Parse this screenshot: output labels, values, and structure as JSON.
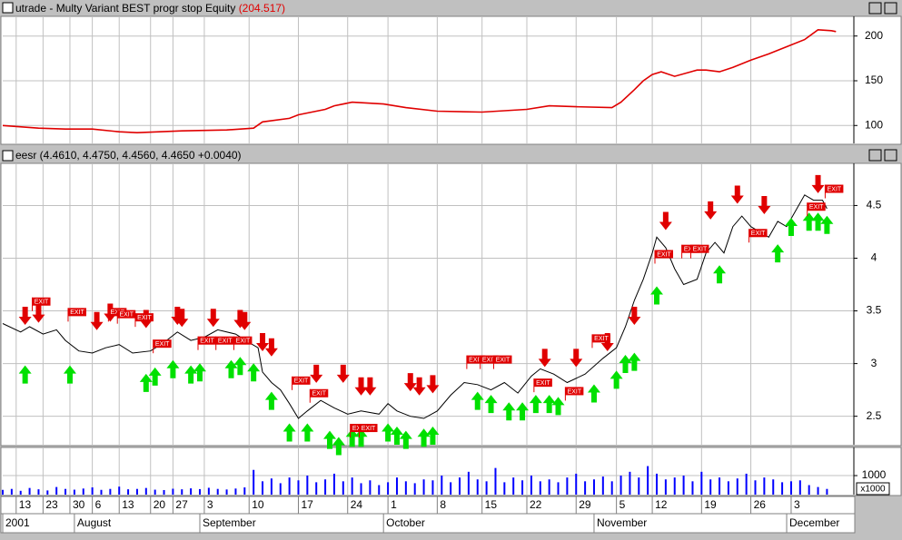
{
  "chart_data": [
    {
      "type": "line",
      "title": "utrade - Multy Variant BEST progr stop Equity",
      "last_value_label": "(204.517)",
      "color": "#e00000",
      "x": [
        0,
        8,
        14,
        20,
        26,
        30,
        40,
        50,
        56,
        58,
        64,
        66,
        72,
        74,
        78,
        85,
        90,
        97,
        107,
        117,
        122,
        128,
        136,
        138,
        141,
        143,
        145,
        147,
        150,
        155,
        157,
        160,
        163,
        167,
        171,
        175,
        179,
        182,
        185,
        186
      ],
      "values": [
        100,
        97,
        96,
        96,
        93,
        92,
        94,
        95,
        97,
        104,
        108,
        112,
        118,
        122,
        126,
        124,
        120,
        116,
        115,
        118,
        122,
        121,
        120,
        126,
        140,
        150,
        157,
        160,
        155,
        162,
        162,
        160,
        165,
        173,
        180,
        188,
        196,
        207,
        206,
        205
      ],
      "xlim": [
        0,
        190
      ],
      "ylim": [
        80,
        222
      ],
      "yticks": [
        100,
        150,
        200
      ],
      "grid": true
    },
    {
      "type": "line",
      "title": "eesr (4.4610, 4.4750, 4.4560, 4.4650 +0.0040)",
      "color": "#000000",
      "x": [
        0,
        4,
        6,
        9,
        12,
        14,
        17,
        20,
        23,
        26,
        29,
        33,
        36,
        39,
        42,
        45,
        48,
        52,
        55,
        57,
        58,
        60,
        62,
        64,
        66,
        68,
        71,
        74,
        77,
        80,
        84,
        86,
        88,
        91,
        94,
        97,
        100,
        103,
        106,
        109,
        112,
        115,
        118,
        120,
        123,
        126,
        130,
        134,
        137,
        139,
        141,
        143,
        145,
        146,
        148,
        150,
        152,
        155,
        157,
        159,
        161,
        163,
        165,
        167,
        169,
        171,
        173,
        175,
        177,
        179,
        181,
        183,
        184
      ],
      "values": [
        3.38,
        3.3,
        3.35,
        3.28,
        3.32,
        3.22,
        3.12,
        3.1,
        3.15,
        3.18,
        3.1,
        3.12,
        3.2,
        3.3,
        3.22,
        3.25,
        3.32,
        3.28,
        3.2,
        3.15,
        2.92,
        2.82,
        2.75,
        2.62,
        2.48,
        2.55,
        2.65,
        2.58,
        2.52,
        2.55,
        2.52,
        2.62,
        2.55,
        2.5,
        2.48,
        2.55,
        2.7,
        2.82,
        2.8,
        2.75,
        2.82,
        2.72,
        2.88,
        2.95,
        2.9,
        2.82,
        2.9,
        3.05,
        3.15,
        3.35,
        3.6,
        3.8,
        4.05,
        4.2,
        4.1,
        3.9,
        3.75,
        3.8,
        4.05,
        4.15,
        4.05,
        4.3,
        4.4,
        4.3,
        4.25,
        4.2,
        4.35,
        4.3,
        4.45,
        4.6,
        4.55,
        4.55,
        4.47
      ],
      "sell_signals": {
        "color": "#e00000",
        "x": [
          5,
          8,
          21,
          24,
          32,
          39,
          40,
          47,
          53,
          54,
          58,
          60,
          70,
          76,
          80,
          82,
          91,
          93,
          96,
          121,
          128,
          135,
          141,
          148,
          158,
          164,
          170,
          182
        ],
        "values": [
          3.35,
          3.37,
          3.3,
          3.38,
          3.32,
          3.35,
          3.33,
          3.33,
          3.32,
          3.3,
          3.1,
          3.05,
          2.8,
          2.8,
          2.68,
          2.68,
          2.72,
          2.68,
          2.7,
          2.95,
          2.95,
          3.1,
          3.35,
          4.25,
          4.35,
          4.5,
          4.4,
          4.6
        ]
      },
      "buy_signals": {
        "color": "#00e000",
        "x": [
          5,
          15,
          32,
          34,
          38,
          42,
          44,
          51,
          53,
          56,
          60,
          64,
          68,
          73,
          75,
          78,
          80,
          86,
          88,
          90,
          94,
          96,
          106,
          109,
          113,
          116,
          119,
          122,
          124,
          132,
          137,
          139,
          141,
          146,
          160,
          173,
          176,
          180,
          182,
          184
        ],
        "values": [
          3.0,
          3.0,
          2.92,
          2.98,
          3.05,
          3.0,
          3.02,
          3.05,
          3.08,
          3.02,
          2.75,
          2.45,
          2.45,
          2.38,
          2.32,
          2.4,
          2.4,
          2.45,
          2.42,
          2.38,
          2.4,
          2.42,
          2.75,
          2.72,
          2.65,
          2.65,
          2.72,
          2.72,
          2.7,
          2.82,
          2.95,
          3.1,
          3.12,
          3.75,
          3.95,
          4.15,
          4.4,
          4.45,
          4.45,
          4.42
        ]
      },
      "exit_label": "EXIT",
      "exits": {
        "color": "#e00000",
        "x": [
          7,
          15,
          24,
          26,
          30,
          34,
          44,
          48,
          52,
          65,
          69,
          78,
          80,
          104,
          107,
          110,
          119,
          126,
          132,
          146,
          152,
          154,
          167,
          180,
          184
        ],
        "values": [
          3.55,
          3.45,
          3.45,
          3.43,
          3.4,
          3.15,
          3.18,
          3.18,
          3.18,
          2.8,
          2.68,
          2.35,
          2.35,
          3.0,
          3.0,
          3.0,
          2.78,
          2.7,
          3.2,
          4.0,
          4.05,
          4.05,
          4.2,
          4.45,
          4.62
        ]
      },
      "xlim": [
        0,
        190
      ],
      "ylim": [
        2.23,
        4.9
      ],
      "yticks": [
        2.5,
        3.0,
        3.5,
        4.0,
        4.5
      ],
      "grid": true
    },
    {
      "type": "bar",
      "color": "#0000ff",
      "unit_label": "x1000",
      "x": [
        0,
        2,
        4,
        6,
        8,
        10,
        12,
        14,
        16,
        18,
        20,
        22,
        24,
        26,
        28,
        30,
        32,
        34,
        36,
        38,
        40,
        42,
        44,
        46,
        48,
        50,
        52,
        54,
        56,
        58,
        60,
        62,
        64,
        66,
        68,
        70,
        72,
        74,
        76,
        78,
        80,
        82,
        84,
        86,
        88,
        90,
        92,
        94,
        96,
        98,
        100,
        102,
        104,
        106,
        108,
        110,
        112,
        114,
        116,
        118,
        120,
        122,
        124,
        126,
        128,
        130,
        132,
        134,
        136,
        138,
        140,
        142,
        144,
        146,
        148,
        150,
        152,
        154,
        156,
        158,
        160,
        162,
        164,
        166,
        168,
        170,
        172,
        174,
        176,
        178,
        180,
        182,
        184
      ],
      "values": [
        250,
        300,
        200,
        350,
        280,
        220,
        400,
        300,
        260,
        320,
        380,
        250,
        300,
        420,
        280,
        300,
        350,
        260,
        240,
        310,
        280,
        330,
        290,
        360,
        300,
        270,
        320,
        380,
        1300,
        700,
        850,
        600,
        900,
        750,
        1000,
        650,
        800,
        1100,
        700,
        900,
        600,
        750,
        500,
        650,
        900,
        700,
        600,
        800,
        750,
        1000,
        650,
        900,
        1200,
        800,
        700,
        1400,
        650,
        900,
        750,
        1000,
        700,
        800,
        650,
        900,
        1100,
        700,
        800,
        950,
        700,
        1000,
        1200,
        900,
        1500,
        1100,
        800,
        900,
        1000,
        700,
        1200,
        800,
        900,
        700,
        850,
        1100,
        750,
        900,
        800,
        650,
        700,
        750,
        500,
        400,
        300
      ],
      "xlim": [
        0,
        190
      ],
      "ylim": [
        0,
        2480
      ],
      "yticks": [
        1000
      ]
    },
    {
      "type": "axis",
      "xticks": [
        {
          "value": 3,
          "label": "13"
        },
        {
          "value": 9,
          "label": "23"
        },
        {
          "value": 15,
          "label": "30"
        },
        {
          "value": 20,
          "label": "6"
        },
        {
          "value": 26,
          "label": "13"
        },
        {
          "value": 33,
          "label": "20"
        },
        {
          "value": 38,
          "label": "27"
        },
        {
          "value": 45,
          "label": "3"
        },
        {
          "value": 55,
          "label": "10"
        },
        {
          "value": 66,
          "label": "17"
        },
        {
          "value": 77,
          "label": "24"
        },
        {
          "value": 86,
          "label": "1"
        },
        {
          "value": 97,
          "label": "8"
        },
        {
          "value": 107,
          "label": "15"
        },
        {
          "value": 117,
          "label": "22"
        },
        {
          "value": 128,
          "label": "29"
        },
        {
          "value": 137,
          "label": "5"
        },
        {
          "value": 145,
          "label": "12"
        },
        {
          "value": 156,
          "label": "19"
        },
        {
          "value": 167,
          "label": "26"
        },
        {
          "value": 176,
          "label": "3"
        }
      ],
      "month_ticks": [
        {
          "value": 0,
          "label": "2001"
        },
        {
          "value": 16,
          "label": "August"
        },
        {
          "value": 44,
          "label": "September"
        },
        {
          "value": 85,
          "label": "October"
        },
        {
          "value": 132,
          "label": "November"
        },
        {
          "value": 175,
          "label": "December"
        }
      ],
      "xlim": [
        0,
        190
      ]
    }
  ]
}
